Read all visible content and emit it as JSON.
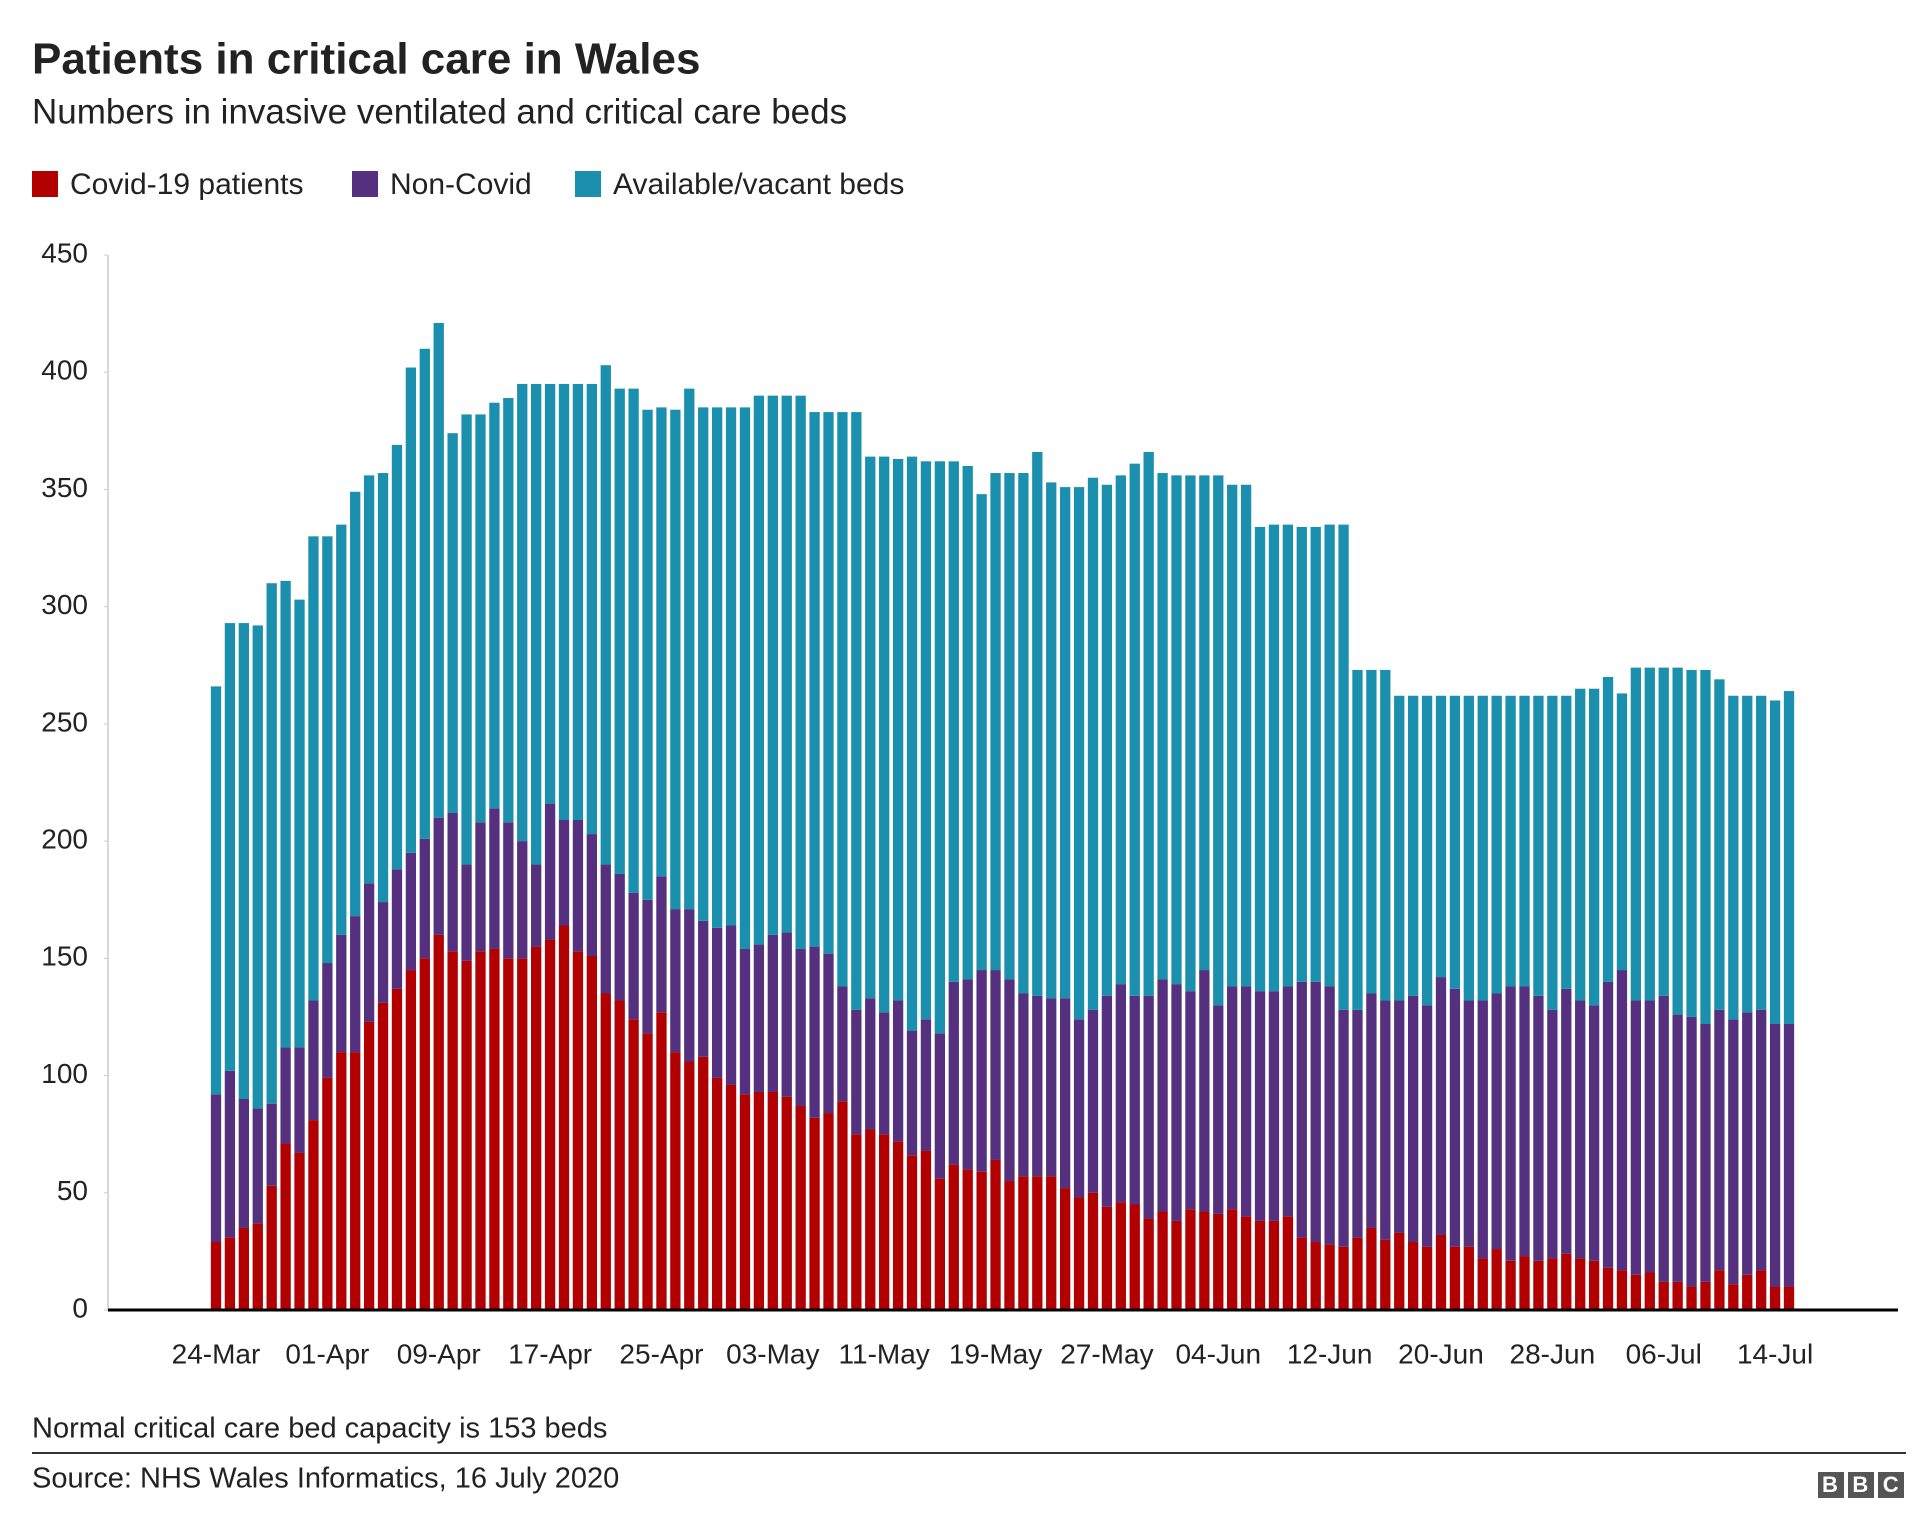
{
  "chart_data": {
    "type": "stacked-bar",
    "title": "Patients in critical care in Wales",
    "subtitle": "Numbers in invasive ventilated and critical care beds",
    "note": "Normal critical care bed capacity is 153 beds",
    "source": "Source: NHS Wales Informatics, 16 July 2020",
    "logo": "BBC",
    "categories": [
      "24-Mar",
      null,
      null,
      null,
      null,
      null,
      null,
      null,
      "01-Apr",
      null,
      null,
      null,
      null,
      null,
      null,
      null,
      "09-Apr",
      null,
      null,
      null,
      null,
      null,
      null,
      null,
      "17-Apr",
      null,
      null,
      null,
      null,
      null,
      null,
      null,
      "25-Apr",
      null,
      null,
      null,
      null,
      null,
      null,
      null,
      "03-May",
      null,
      null,
      null,
      null,
      null,
      null,
      null,
      "11-May",
      null,
      null,
      null,
      null,
      null,
      null,
      null,
      "19-May",
      null,
      null,
      null,
      null,
      null,
      null,
      null,
      "27-May",
      null,
      null,
      null,
      null,
      null,
      null,
      null,
      "04-Jun",
      null,
      null,
      null,
      null,
      null,
      null,
      null,
      "12-Jun",
      null,
      null,
      null,
      null,
      null,
      null,
      null,
      "20-Jun",
      null,
      null,
      null,
      null,
      null,
      null,
      null,
      "28-Jun",
      null,
      null,
      null,
      null,
      null,
      null,
      null,
      "06-Jul",
      null,
      null,
      null,
      null,
      null,
      null,
      null,
      "14-Jul",
      null
    ],
    "series": [
      {
        "name": "Covid-19 patients",
        "color": "#b20000",
        "values": [
          29,
          31,
          35,
          37,
          53,
          71,
          67,
          81,
          99,
          110,
          110,
          123,
          131,
          137,
          145,
          150,
          160,
          153,
          149,
          153,
          154,
          150,
          150,
          155,
          158,
          164,
          153,
          151,
          135,
          132,
          124,
          118,
          127,
          110,
          106,
          108,
          99,
          96,
          92,
          93,
          93,
          91,
          87,
          82,
          84,
          89,
          75,
          77,
          75,
          72,
          66,
          68,
          56,
          62,
          60,
          59,
          64,
          55,
          57,
          57,
          57,
          52,
          48,
          50,
          44,
          46,
          45,
          39,
          42,
          38,
          43,
          42,
          41,
          43,
          40,
          38,
          38,
          40,
          31,
          29,
          28,
          27,
          31,
          35,
          30,
          33,
          29,
          27,
          32,
          27,
          27,
          22,
          26,
          21,
          23,
          21,
          22,
          24,
          22,
          21,
          18,
          17,
          15,
          16,
          12,
          12,
          10,
          12,
          17,
          11,
          15,
          17,
          10,
          10
        ]
      },
      {
        "name": "Non-Covid",
        "color": "#55307e",
        "values": [
          63,
          71,
          55,
          49,
          35,
          41,
          45,
          51,
          49,
          50,
          58,
          59,
          43,
          51,
          50,
          51,
          50,
          59,
          41,
          55,
          60,
          58,
          50,
          35,
          58,
          45,
          56,
          52,
          55,
          54,
          54,
          57,
          58,
          61,
          65,
          58,
          64,
          68,
          62,
          63,
          67,
          70,
          67,
          73,
          68,
          49,
          53,
          56,
          52,
          60,
          53,
          56,
          62,
          78,
          81,
          86,
          81,
          86,
          78,
          77,
          76,
          81,
          76,
          78,
          90,
          93,
          89,
          95,
          99,
          101,
          93,
          103,
          89,
          95,
          98,
          98,
          98,
          98,
          109,
          111,
          110,
          101,
          97,
          100,
          102,
          99,
          105,
          103,
          110,
          110,
          105,
          110,
          109,
          117,
          115,
          113,
          106,
          113,
          110,
          109,
          122,
          128,
          117,
          116,
          122,
          114,
          115,
          110,
          111,
          113,
          112,
          111,
          112,
          112
        ]
      },
      {
        "name": "Available/vacant beds",
        "color": "#1b8fae",
        "values": [
          174,
          191,
          203,
          206,
          222,
          199,
          191,
          198,
          182,
          175,
          181,
          174,
          183,
          181,
          207,
          209,
          211,
          162,
          192,
          174,
          173,
          181,
          195,
          205,
          179,
          186,
          186,
          192,
          213,
          207,
          215,
          209,
          200,
          213,
          222,
          219,
          222,
          221,
          231,
          234,
          230,
          229,
          236,
          228,
          231,
          245,
          255,
          231,
          237,
          231,
          245,
          238,
          244,
          222,
          219,
          203,
          212,
          216,
          222,
          232,
          220,
          218,
          227,
          227,
          218,
          217,
          227,
          232,
          216,
          217,
          220,
          211,
          226,
          214,
          214,
          198,
          199,
          197,
          194,
          194,
          197,
          207,
          145,
          138,
          141,
          130,
          128,
          132,
          120,
          125,
          130,
          130,
          127,
          124,
          124,
          128,
          134,
          125,
          133,
          135,
          130,
          118,
          142,
          142,
          140,
          148,
          148,
          151,
          141,
          138,
          135,
          134,
          138,
          142
        ]
      }
    ],
    "ylim": [
      0,
      450
    ],
    "yticks": [
      0,
      50,
      100,
      150,
      200,
      250,
      300,
      350,
      400,
      450
    ],
    "grid": false,
    "legend": "top-left"
  }
}
